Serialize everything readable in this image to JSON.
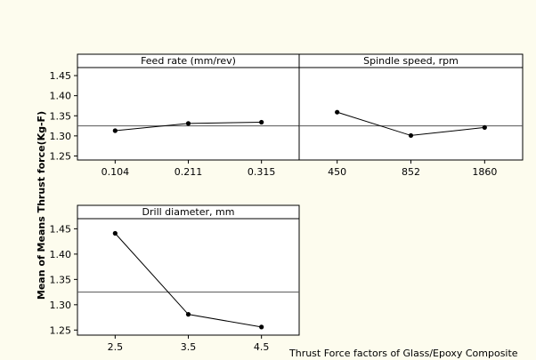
{
  "chart_data": {
    "type": "line",
    "ylabel": "Mean of Means Thrust force(Kg-F)",
    "footer": "Thrust Force factors of Glass/Epoxy Composite",
    "ylim": [
      1.24,
      1.47
    ],
    "yticks": [
      "1.25",
      "1.30",
      "1.35",
      "1.40",
      "1.45"
    ],
    "ytick_values": [
      1.25,
      1.3,
      1.35,
      1.4,
      1.45
    ],
    "grand_mean": 1.325,
    "panels": [
      {
        "title": "Feed rate (mm/rev)",
        "categories": [
          "0.104",
          "0.211",
          "0.315"
        ],
        "values": [
          1.313,
          1.331,
          1.334
        ]
      },
      {
        "title": "Spindle speed, rpm",
        "categories": [
          "450",
          "852",
          "1860"
        ],
        "values": [
          1.359,
          1.301,
          1.321
        ]
      },
      {
        "title": "Drill diameter, mm",
        "categories": [
          "2.5",
          "3.5",
          "4.5"
        ],
        "values": [
          1.441,
          1.281,
          1.256
        ]
      }
    ]
  }
}
